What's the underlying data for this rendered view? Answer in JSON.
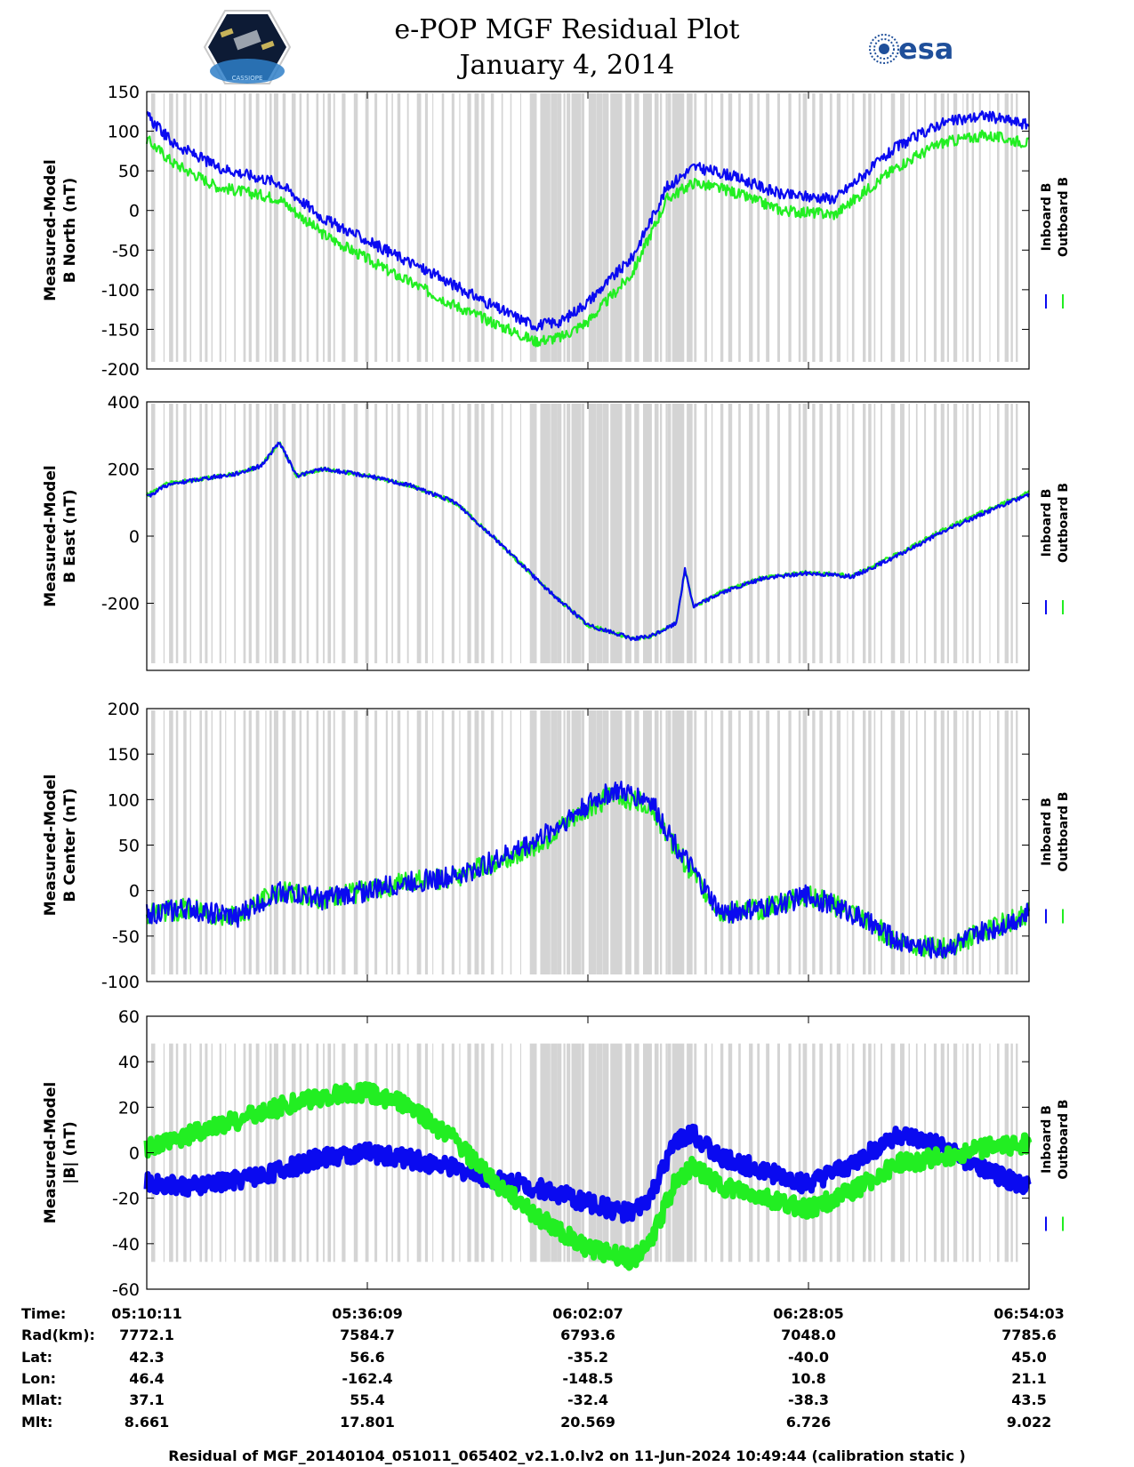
{
  "header": {
    "title": "e-POP MGF Residual Plot",
    "date": "January 4, 2014",
    "logo_left": "CASSIOPE",
    "logo_right": "esa"
  },
  "legend": {
    "inboard": "Inboard B",
    "outboard": "Outboard B"
  },
  "colors": {
    "inboard": "#0a0af0",
    "outboard": "#22ee22",
    "gaps": "#d4d4d4"
  },
  "chart_data": [
    {
      "type": "line",
      "ylabel": [
        "Measured-Model",
        "B North (nT)"
      ],
      "ylim": [
        -200,
        150
      ],
      "yticks": [
        150,
        100,
        50,
        0,
        -50,
        -100,
        -150,
        -200
      ],
      "x": [
        0,
        0.03,
        0.08,
        0.15,
        0.2,
        0.28,
        0.35,
        0.4,
        0.44,
        0.47,
        0.5,
        0.55,
        0.59,
        0.62,
        0.66,
        0.72,
        0.78,
        0.85,
        0.9,
        0.95,
        1
      ],
      "series": [
        {
          "name": "Inboard B",
          "values": [
            120,
            85,
            55,
            35,
            -10,
            -55,
            -95,
            -125,
            -145,
            -140,
            -115,
            -60,
            30,
            55,
            45,
            20,
            15,
            80,
            110,
            120,
            108
          ]
        },
        {
          "name": "Outboard B",
          "values": [
            90,
            60,
            30,
            15,
            -30,
            -80,
            -120,
            -145,
            -165,
            -160,
            -140,
            -80,
            15,
            35,
            25,
            0,
            -5,
            55,
            85,
            95,
            85
          ]
        }
      ]
    },
    {
      "type": "line",
      "ylabel": [
        "Measured-Model",
        "B East (nT)"
      ],
      "ylim": [
        -400,
        400
      ],
      "yticks": [
        400,
        200,
        0,
        -200
      ],
      "x": [
        0,
        0.02,
        0.06,
        0.1,
        0.13,
        0.15,
        0.17,
        0.2,
        0.25,
        0.3,
        0.35,
        0.4,
        0.45,
        0.5,
        0.55,
        0.57,
        0.6,
        0.61,
        0.62,
        0.65,
        0.7,
        0.75,
        0.8,
        0.85,
        0.9,
        0.95,
        1
      ],
      "series": [
        {
          "name": "Inboard B",
          "values": [
            115,
            150,
            170,
            185,
            210,
            280,
            180,
            200,
            180,
            150,
            100,
            -20,
            -150,
            -265,
            -305,
            -300,
            -260,
            -100,
            -210,
            -170,
            -125,
            -110,
            -120,
            -60,
            10,
            70,
            125
          ]
        },
        {
          "name": "Outboard B",
          "values": [
            120,
            155,
            170,
            185,
            210,
            280,
            180,
            200,
            180,
            150,
            100,
            -20,
            -150,
            -265,
            -305,
            -300,
            -260,
            -100,
            -210,
            -168,
            -122,
            -108,
            -118,
            -55,
            15,
            75,
            130
          ]
        }
      ]
    },
    {
      "type": "line",
      "ylabel": [
        "Measured-Model",
        "B Center (nT)"
      ],
      "ylim": [
        -100,
        200
      ],
      "yticks": [
        200,
        150,
        100,
        50,
        0,
        -50,
        -100
      ],
      "x": [
        0,
        0.05,
        0.1,
        0.15,
        0.2,
        0.3,
        0.35,
        0.4,
        0.45,
        0.5,
        0.53,
        0.57,
        0.6,
        0.65,
        0.7,
        0.75,
        0.8,
        0.85,
        0.9,
        0.95,
        1
      ],
      "series": [
        {
          "name": "Inboard B",
          "values": [
            -25,
            -20,
            -30,
            0,
            -10,
            10,
            15,
            35,
            60,
            95,
            110,
            100,
            50,
            -25,
            -20,
            -5,
            -25,
            -55,
            -65,
            -45,
            -25
          ]
        },
        {
          "name": "Outboard B",
          "values": [
            -25,
            -20,
            -30,
            0,
            -10,
            10,
            15,
            32,
            55,
            90,
            105,
            95,
            45,
            -25,
            -20,
            -5,
            -25,
            -55,
            -65,
            -45,
            -25
          ]
        }
      ]
    },
    {
      "type": "line",
      "ylabel": [
        "Measured-Model",
        "|B| (nT)"
      ],
      "ylim": [
        -60,
        60
      ],
      "yticks": [
        60,
        40,
        20,
        0,
        -20,
        -40,
        -60
      ],
      "x": [
        0,
        0.05,
        0.1,
        0.15,
        0.2,
        0.25,
        0.3,
        0.35,
        0.4,
        0.45,
        0.5,
        0.55,
        0.57,
        0.6,
        0.62,
        0.65,
        0.7,
        0.75,
        0.8,
        0.85,
        0.9,
        0.95,
        1
      ],
      "series": [
        {
          "name": "Inboard B",
          "values": [
            -13,
            -15,
            -12,
            -8,
            -2,
            0,
            -3,
            -7,
            -12,
            -16,
            -22,
            -27,
            -20,
            5,
            8,
            -2,
            -8,
            -14,
            -5,
            8,
            3,
            -8,
            -15
          ]
        },
        {
          "name": "Outboard B",
          "values": [
            2,
            8,
            14,
            20,
            25,
            27,
            20,
            5,
            -15,
            -30,
            -42,
            -47,
            -40,
            -12,
            -6,
            -15,
            -20,
            -25,
            -17,
            -5,
            -2,
            2,
            4
          ]
        }
      ]
    }
  ],
  "metadata": {
    "rows": [
      {
        "label": "Time:",
        "values": [
          "05:10:11",
          "05:36:09",
          "06:02:07",
          "06:28:05",
          "06:54:03"
        ]
      },
      {
        "label": "Rad(km):",
        "values": [
          "7772.1",
          "7584.7",
          "6793.6",
          "7048.0",
          "7785.6"
        ]
      },
      {
        "label": "Lat:",
        "values": [
          "42.3",
          "56.6",
          "-35.2",
          "-40.0",
          "45.0"
        ]
      },
      {
        "label": "Lon:",
        "values": [
          "46.4",
          "-162.4",
          "-148.5",
          "10.8",
          "21.1"
        ]
      },
      {
        "label": "Mlat:",
        "values": [
          "37.1",
          "55.4",
          "-32.4",
          "-38.3",
          "43.5"
        ]
      },
      {
        "label": "Mlt:",
        "values": [
          "8.661",
          "17.801",
          "20.569",
          "6.726",
          "9.022"
        ]
      }
    ]
  },
  "footer": "Residual of MGF_20140104_051011_065402_v2.1.0.lv2 on 11-Jun-2024 10:49:44 (calibration static )"
}
